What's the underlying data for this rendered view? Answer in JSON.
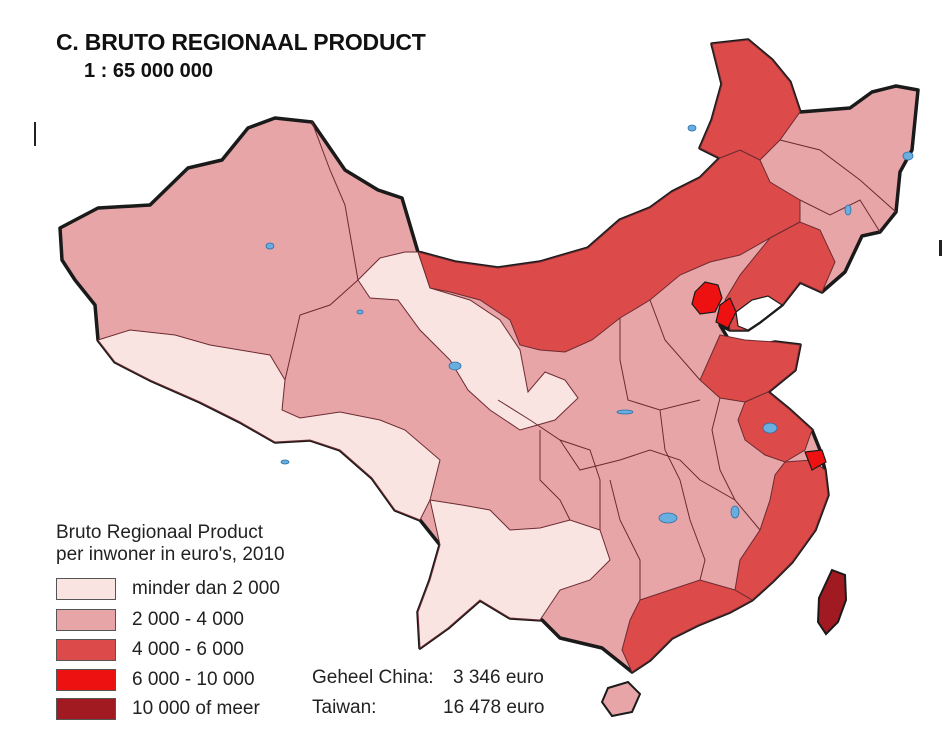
{
  "map": {
    "title": "C. BRUTO REGIONAAL PRODUCT",
    "scale": "1 : 65 000 000"
  },
  "legend": {
    "title_line1": "Bruto Regionaal Product",
    "title_line2": "per inwoner in euro's, 2010",
    "classes": [
      {
        "label": "minder dan 2 000",
        "color": "#f9e4e2"
      },
      {
        "label": "2 000 - 4 000",
        "color": "#e8a5a8"
      },
      {
        "label": "4 000 - 6 000",
        "color": "#dd4a4a"
      },
      {
        "label": "6 000 - 10 000",
        "color": "#ee1111"
      },
      {
        "label": "10 000 of meer",
        "color": "#a11a22"
      }
    ]
  },
  "stats": {
    "china_label": "Geheel China:",
    "china_value": "3 346 euro",
    "taiwan_label": "Taiwan:",
    "taiwan_value": "16 478 euro"
  },
  "colors": {
    "border": "#1a1a1a",
    "province_border": "#6b2b30",
    "water": "#6aaee0"
  }
}
